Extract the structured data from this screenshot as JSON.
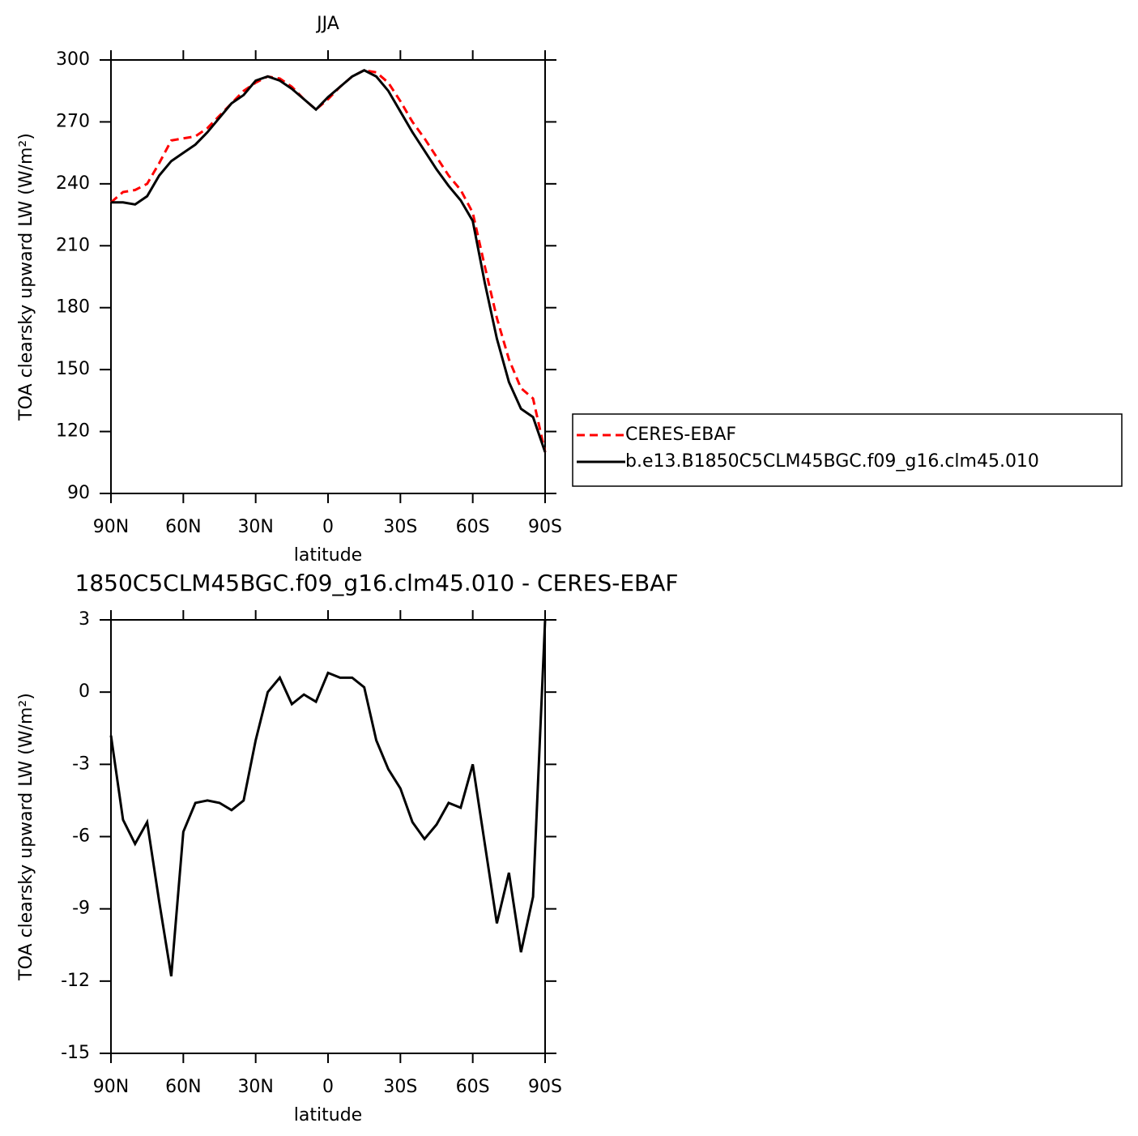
{
  "chart_data": [
    {
      "type": "line",
      "title": "JJA",
      "xlabel": "latitude",
      "ylabel": "TOA clearsky upward LW (W/m²)",
      "x": [
        90,
        85,
        80,
        75,
        70,
        65,
        60,
        55,
        50,
        45,
        40,
        35,
        30,
        25,
        20,
        15,
        10,
        5,
        0,
        -5,
        -10,
        -15,
        -20,
        -25,
        -30,
        -35,
        -40,
        -45,
        -50,
        -55,
        -60,
        -65,
        -70,
        -75,
        -80,
        -85,
        -90
      ],
      "series": [
        {
          "name": "CERES-EBAF",
          "color": "#ff0000",
          "dash": "dashed",
          "values": [
            231,
            236,
            237,
            240,
            250,
            261,
            262,
            263,
            267,
            273,
            279,
            285,
            289,
            292,
            291,
            287,
            281,
            276,
            281,
            287,
            292,
            295,
            294,
            289,
            280,
            270,
            262,
            253,
            244,
            237,
            226,
            200,
            175,
            155,
            141,
            136,
            110
          ]
        },
        {
          "name": "b.e13.B1850C5CLM45BGC.f09_g16.clm45.010",
          "color": "#000000",
          "dash": "solid",
          "values": [
            231,
            231,
            230,
            234,
            244,
            251,
            255,
            259,
            265,
            272,
            279,
            283,
            290,
            292,
            290,
            286,
            281,
            276,
            282,
            287,
            292,
            295,
            292,
            285,
            275,
            265,
            256,
            247,
            239,
            232,
            222,
            192,
            165,
            144,
            131,
            127,
            110
          ]
        }
      ],
      "xlim": [
        90,
        -90
      ],
      "xticks": [
        {
          "value": 90,
          "label": "90N"
        },
        {
          "value": 60,
          "label": "60N"
        },
        {
          "value": 30,
          "label": "30N"
        },
        0,
        {
          "value": -30,
          "label": "30S"
        },
        {
          "value": -60,
          "label": "60S"
        },
        {
          "value": -90,
          "label": "90S"
        }
      ],
      "ylim": [
        90,
        300
      ],
      "yticks": [
        90,
        120,
        150,
        180,
        210,
        240,
        270,
        300
      ],
      "legend": "right"
    },
    {
      "type": "line",
      "title": "1850C5CLM45BGC.f09_g16.clm45.010 - CERES-EBAF",
      "xlabel": "latitude",
      "ylabel": "TOA clearsky upward LW (W/m²)",
      "x": [
        90,
        85,
        80,
        75,
        70,
        65,
        60,
        55,
        50,
        45,
        40,
        35,
        30,
        25,
        20,
        15,
        10,
        5,
        0,
        -5,
        -10,
        -15,
        -20,
        -25,
        -30,
        -35,
        -40,
        -45,
        -50,
        -55,
        -60,
        -65,
        -70,
        -75,
        -80,
        -85,
        -90
      ],
      "series": [
        {
          "color": "#000000",
          "dash": "solid",
          "values": [
            -1.8,
            -5.3,
            -6.3,
            -5.4,
            -8.7,
            -11.8,
            -5.8,
            -4.6,
            -4.5,
            -4.6,
            -4.9,
            -4.5,
            -2.0,
            0.0,
            0.6,
            -0.5,
            -0.1,
            -0.4,
            0.8,
            0.6,
            0.6,
            0.2,
            -2.0,
            -3.2,
            -4.0,
            -5.4,
            -6.1,
            -5.5,
            -4.6,
            -4.8,
            -3.0,
            -6.3,
            -9.6,
            -7.5,
            -10.8,
            -8.5,
            3.0
          ]
        }
      ],
      "xlim": [
        90,
        -90
      ],
      "xticks": [
        {
          "value": 90,
          "label": "90N"
        },
        {
          "value": 60,
          "label": "60N"
        },
        {
          "value": 30,
          "label": "30N"
        },
        0,
        {
          "value": -30,
          "label": "30S"
        },
        {
          "value": -60,
          "label": "60S"
        },
        {
          "value": -90,
          "label": "90S"
        }
      ],
      "ylim": [
        -15,
        3
      ],
      "yticks": [
        -15,
        -12,
        -9,
        -6,
        -3,
        0,
        3
      ]
    }
  ]
}
